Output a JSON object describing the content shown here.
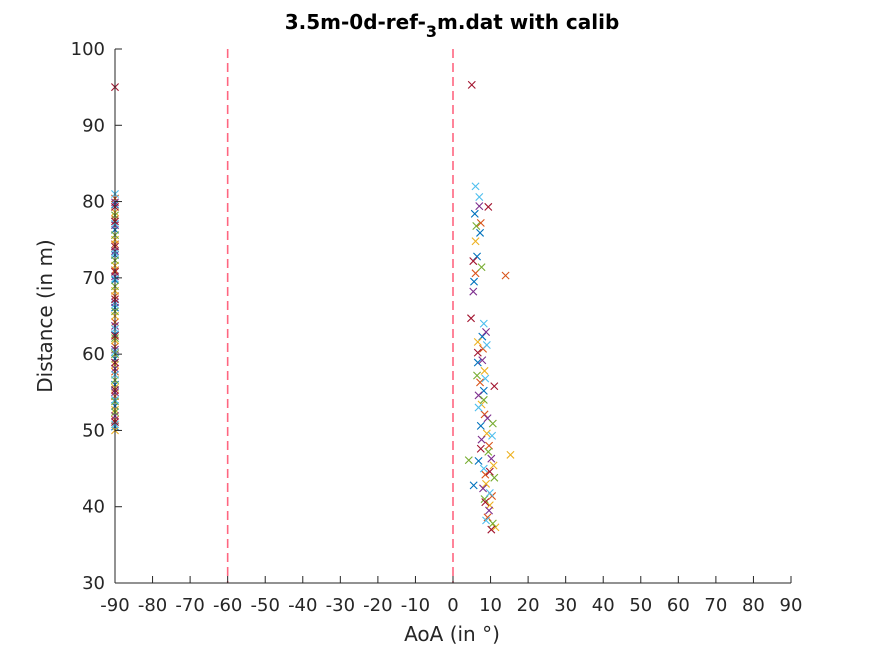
{
  "chart_data": {
    "type": "scatter",
    "title": {
      "main": "3.5m-0d-ref-",
      "subscript": "3",
      "suffix": "m.dat with calib"
    },
    "xlabel": "AoA (in °)",
    "ylabel": "Distance (in m)",
    "xlim": [
      -90,
      90
    ],
    "ylim": [
      30,
      100
    ],
    "xticks": [
      -90,
      -80,
      -70,
      -60,
      -50,
      -40,
      -30,
      -20,
      -10,
      0,
      10,
      20,
      30,
      40,
      50,
      60,
      70,
      80,
      90
    ],
    "yticks": [
      30,
      40,
      50,
      60,
      70,
      80,
      90,
      100
    ],
    "grid": false,
    "marker": "x",
    "reference_lines": [
      {
        "x": -60,
        "style": "dashed",
        "color": "#ff6680"
      },
      {
        "x": 0,
        "style": "dashed",
        "color": "#ff6680"
      }
    ],
    "series_colors": [
      "#0072bd",
      "#d95319",
      "#edb120",
      "#7e2f8e",
      "#77ac30",
      "#4dbeee",
      "#a2142f"
    ],
    "series": [
      {
        "values": [
          [
            -90,
            50.5
          ],
          [
            -90,
            53.2
          ],
          [
            -90,
            56.0
          ],
          [
            -90,
            59.4
          ],
          [
            -90,
            62.6
          ],
          [
            -90,
            66.1
          ],
          [
            -90,
            69.7
          ],
          [
            -90,
            73.0
          ],
          [
            -90,
            76.3
          ],
          [
            -90,
            79.6
          ],
          [
            5.5,
            42.8
          ],
          [
            6.8,
            46.0
          ],
          [
            7.4,
            50.6
          ],
          [
            8.2,
            55.2
          ],
          [
            6.6,
            58.9
          ],
          [
            7.8,
            62.3
          ],
          [
            5.6,
            69.5
          ],
          [
            6.4,
            72.8
          ],
          [
            7.2,
            75.9
          ],
          [
            5.8,
            78.4
          ]
        ]
      },
      {
        "values": [
          [
            -90,
            51.4
          ],
          [
            -90,
            54.5
          ],
          [
            -90,
            57.7
          ],
          [
            -90,
            61.0
          ],
          [
            -90,
            64.2
          ],
          [
            -90,
            67.6
          ],
          [
            -90,
            71.0
          ],
          [
            -90,
            74.4
          ],
          [
            -90,
            77.7
          ],
          [
            -90,
            80.4
          ],
          [
            14.0,
            70.3
          ],
          [
            9.2,
            38.6
          ],
          [
            10.4,
            41.4
          ],
          [
            8.6,
            44.2
          ],
          [
            9.6,
            48.0
          ],
          [
            8.4,
            52.1
          ],
          [
            7.2,
            56.3
          ],
          [
            8.0,
            60.7
          ],
          [
            6.0,
            70.6
          ],
          [
            7.4,
            77.2
          ]
        ]
      },
      {
        "values": [
          [
            -90,
            50.0
          ],
          [
            -90,
            52.7
          ],
          [
            -90,
            55.6
          ],
          [
            -90,
            58.6
          ],
          [
            -90,
            61.8
          ],
          [
            -90,
            65.0
          ],
          [
            -90,
            68.3
          ],
          [
            -90,
            71.6
          ],
          [
            -90,
            75.0
          ],
          [
            -90,
            78.6
          ],
          [
            15.3,
            46.8
          ],
          [
            11.3,
            37.3
          ],
          [
            9.8,
            40.2
          ],
          [
            8.8,
            43.0
          ],
          [
            10.8,
            45.4
          ],
          [
            9.0,
            49.6
          ],
          [
            7.6,
            53.4
          ],
          [
            8.4,
            57.8
          ],
          [
            6.6,
            61.6
          ],
          [
            6.0,
            74.8
          ]
        ]
      },
      {
        "values": [
          [
            -90,
            51.9
          ],
          [
            -90,
            55.0
          ],
          [
            -90,
            58.1
          ],
          [
            -90,
            60.6
          ],
          [
            -90,
            63.7
          ],
          [
            -90,
            66.8
          ],
          [
            -90,
            70.2
          ],
          [
            -90,
            73.5
          ],
          [
            -90,
            76.9
          ],
          [
            -90,
            79.9
          ],
          [
            9.6,
            39.5
          ],
          [
            8.0,
            42.4
          ],
          [
            10.2,
            46.3
          ],
          [
            7.6,
            48.8
          ],
          [
            9.2,
            51.6
          ],
          [
            6.8,
            54.6
          ],
          [
            7.8,
            59.2
          ],
          [
            8.8,
            62.9
          ],
          [
            5.4,
            68.2
          ],
          [
            7.0,
            79.4
          ]
        ]
      },
      {
        "values": [
          [
            -90,
            52.4
          ],
          [
            -90,
            56.6
          ],
          [
            -90,
            60.0
          ],
          [
            -90,
            62.1
          ],
          [
            -90,
            65.6
          ],
          [
            -90,
            68.9
          ],
          [
            -90,
            72.3
          ],
          [
            -90,
            75.6
          ],
          [
            -90,
            78.2
          ],
          [
            -90,
            53.8
          ],
          [
            4.2,
            46.1
          ],
          [
            10.6,
            37.8
          ],
          [
            8.4,
            41.0
          ],
          [
            11.0,
            43.8
          ],
          [
            9.4,
            47.2
          ],
          [
            10.6,
            50.9
          ],
          [
            8.2,
            54.0
          ],
          [
            6.4,
            57.2
          ],
          [
            7.6,
            71.4
          ],
          [
            6.2,
            76.8
          ]
        ]
      },
      {
        "values": [
          [
            -90,
            50.8
          ],
          [
            -90,
            54.0
          ],
          [
            -90,
            57.3
          ],
          [
            -90,
            60.3
          ],
          [
            -90,
            63.3
          ],
          [
            -90,
            66.5
          ],
          [
            -90,
            69.9
          ],
          [
            -90,
            73.3
          ],
          [
            -90,
            77.1
          ],
          [
            -90,
            81.0
          ],
          [
            6.0,
            82.0
          ],
          [
            8.8,
            38.2
          ],
          [
            9.8,
            41.8
          ],
          [
            8.2,
            45.0
          ],
          [
            10.4,
            49.3
          ],
          [
            6.8,
            53.0
          ],
          [
            8.6,
            56.8
          ],
          [
            9.0,
            61.2
          ],
          [
            8.2,
            64.0
          ],
          [
            7.0,
            80.6
          ]
        ]
      },
      {
        "values": [
          [
            -90,
            95.0
          ],
          [
            -90,
            51.1
          ],
          [
            -90,
            55.3
          ],
          [
            -90,
            58.9
          ],
          [
            -90,
            62.4
          ],
          [
            -90,
            67.2
          ],
          [
            -90,
            70.8
          ],
          [
            -90,
            74.1
          ],
          [
            -90,
            77.4
          ],
          [
            -90,
            79.3
          ],
          [
            5.0,
            95.3
          ],
          [
            4.8,
            64.7
          ],
          [
            10.2,
            37.0
          ],
          [
            8.6,
            40.6
          ],
          [
            9.8,
            44.6
          ],
          [
            7.4,
            47.6
          ],
          [
            11.0,
            55.8
          ],
          [
            6.6,
            60.2
          ],
          [
            5.4,
            72.2
          ],
          [
            9.4,
            79.3
          ]
        ]
      }
    ]
  }
}
